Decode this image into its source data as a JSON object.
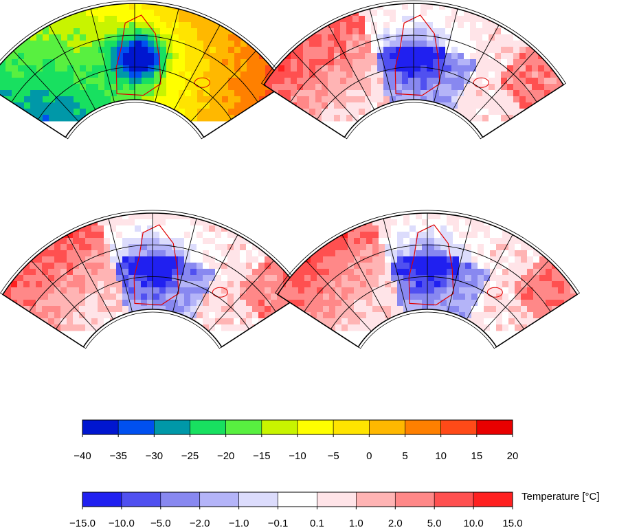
{
  "panels": [
    {
      "id": "absolute",
      "mode": "absolute"
    },
    {
      "id": "anomaly-1",
      "mode": "anomaly",
      "seed": 1
    },
    {
      "id": "anomaly-2",
      "mode": "anomaly",
      "seed": 2
    },
    {
      "id": "anomaly-3",
      "mode": "anomaly",
      "seed": 3
    }
  ],
  "colorbar_absolute": {
    "labels": [
      "−40",
      "−35",
      "−30",
      "−25",
      "−20",
      "−15",
      "−10",
      "−5",
      "0",
      "5",
      "10",
      "15",
      "20"
    ],
    "colors": [
      "#0016d0",
      "#0050f0",
      "#0098a8",
      "#18e060",
      "#58f040",
      "#c8f400",
      "#ffff00",
      "#ffe400",
      "#ffb800",
      "#ff8000",
      "#ff4a18",
      "#e80000"
    ]
  },
  "colorbar_anomaly": {
    "labels": [
      "−15.0",
      "−10.0",
      "−5.0",
      "−2.0",
      "−1.0",
      "−0.1",
      "0.1",
      "1.0",
      "2.0",
      "5.0",
      "10.0",
      "15.0"
    ],
    "colors": [
      "#2020f0",
      "#5050f0",
      "#8888f0",
      "#b4b4f8",
      "#dcdcfc",
      "#ffffff",
      "#ffe4e8",
      "#ffb4b4",
      "#ff8888",
      "#ff5050",
      "#ff2020"
    ],
    "title": "Temperature [°C]"
  }
}
